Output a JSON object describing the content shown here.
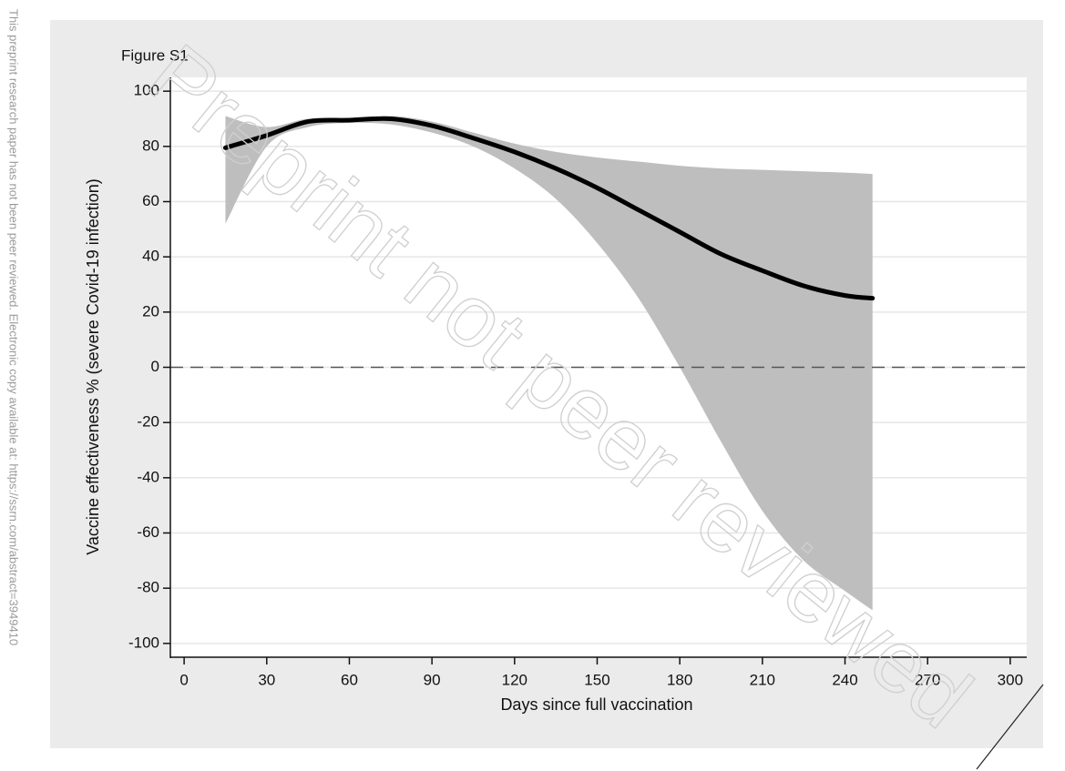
{
  "side_note": "This preprint research paper has not been peer reviewed. Electronic copy available at: https://ssrn.com/abstract=3949410",
  "watermark": "Preprint not peer reviewed",
  "chart_data": {
    "type": "line",
    "title": "Figure S1",
    "x_label": "Days since full vaccination",
    "y_label": "Vaccine effectiveness % (severe Covid-19 infection)",
    "x": [
      15,
      30,
      45,
      60,
      75,
      90,
      105,
      120,
      135,
      150,
      165,
      180,
      195,
      210,
      225,
      240,
      250
    ],
    "values": [
      79.5,
      84,
      89,
      89.5,
      90,
      87.5,
      83,
      78,
      72,
      65,
      57,
      49,
      41,
      35,
      29.5,
      26,
      25
    ],
    "color": "#000000",
    "band": {
      "color": "#bebebe",
      "upper": [
        91,
        87,
        90,
        89.5,
        91,
        89,
        85,
        81,
        78,
        76,
        74.5,
        73,
        72,
        71.5,
        71,
        70.5,
        70
      ],
      "lower": [
        52,
        80,
        87,
        88.5,
        88,
        85,
        80,
        72,
        61,
        45,
        25,
        0,
        -27,
        -52,
        -70,
        -81,
        -88
      ]
    },
    "yline": 0,
    "xlim": [
      -5,
      306
    ],
    "ylim": [
      -105,
      105
    ],
    "xticks": [
      0,
      30,
      60,
      90,
      120,
      150,
      180,
      210,
      240,
      270,
      300
    ],
    "yticks": [
      -100,
      -80,
      -60,
      -40,
      -20,
      0,
      20,
      40,
      60,
      80,
      100
    ],
    "grid": true
  }
}
